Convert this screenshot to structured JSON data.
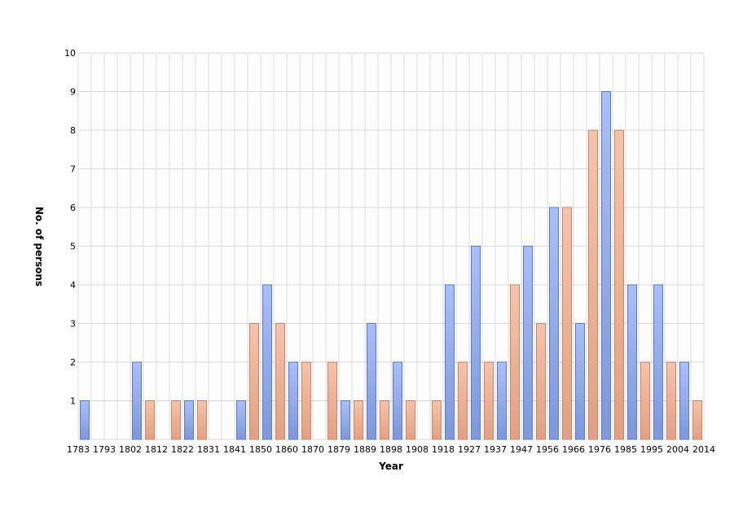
{
  "chart_data": {
    "type": "bar",
    "title": "",
    "xlabel": "Year",
    "ylabel": "No. of persons",
    "ylim": [
      0,
      10
    ],
    "yticks": [
      1,
      2,
      3,
      4,
      5,
      6,
      7,
      8,
      9,
      10
    ],
    "grid": true,
    "x_tick_labels": [
      "1783",
      "1793",
      "1802",
      "1812",
      "1822",
      "1831",
      "1841",
      "1850",
      "1860",
      "1870",
      "1879",
      "1889",
      "1898",
      "1908",
      "1918",
      "1927",
      "1937",
      "1947",
      "1956",
      "1966",
      "1976",
      "1985",
      "1995",
      "2004",
      "2014"
    ],
    "bars_per_interval": [
      [
        1,
        null
      ],
      [
        null,
        null
      ],
      [
        2,
        1
      ],
      [
        null,
        1
      ],
      [
        1,
        1
      ],
      [
        null,
        null
      ],
      [
        1,
        3
      ],
      [
        4,
        3
      ],
      [
        2,
        2
      ],
      [
        null,
        2
      ],
      [
        1,
        1
      ],
      [
        3,
        1
      ],
      [
        2,
        1
      ],
      [
        null,
        1
      ],
      [
        4,
        2
      ],
      [
        5,
        2
      ],
      [
        2,
        4
      ],
      [
        5,
        3
      ],
      [
        6,
        6
      ],
      [
        3,
        8
      ],
      [
        9,
        8
      ],
      [
        4,
        2
      ],
      [
        4,
        2
      ],
      [
        2,
        1
      ]
    ],
    "colors": {
      "series_a": "#9db4f0",
      "series_a_stroke": "#5d78c8",
      "series_b": "#f4b8a0",
      "series_b_stroke": "#c88468",
      "grid": "#d8d8d8"
    }
  }
}
